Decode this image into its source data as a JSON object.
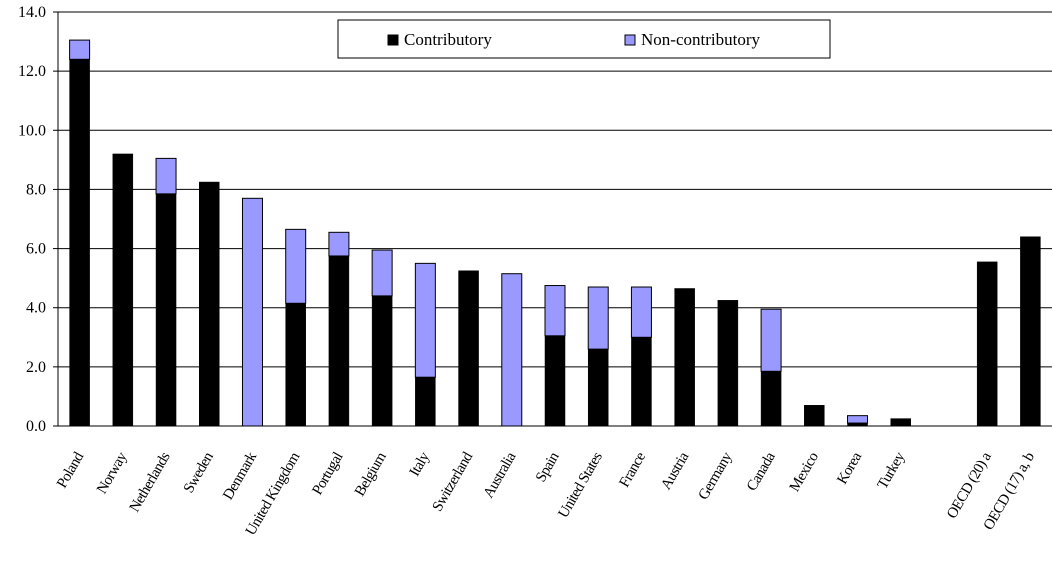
{
  "chart_data": {
    "type": "bar",
    "stacked": true,
    "categories": [
      "Poland",
      "Norway",
      "Netherlands",
      "Sweden",
      "Denmark",
      "United Kingdom",
      "Portugal",
      "Belgium",
      "Italy",
      "Switzerland",
      "Australia",
      "Spain",
      "United States",
      "France",
      "Austria",
      "Germany",
      "Canada",
      "Mexico",
      "Korea",
      "Turkey",
      "",
      "OECD (20) a",
      "OECD (17) a, b"
    ],
    "series": [
      {
        "name": "Contributory",
        "color": "#000000",
        "values": [
          12.4,
          9.2,
          7.85,
          8.25,
          0,
          4.15,
          5.75,
          4.4,
          1.65,
          5.25,
          0,
          3.05,
          2.6,
          3.0,
          4.65,
          4.25,
          1.85,
          0.7,
          0.1,
          0.25,
          null,
          5.55,
          6.4
        ]
      },
      {
        "name": "Non-contributory",
        "color": "#9999ff",
        "values": [
          0.65,
          0,
          1.2,
          0,
          7.7,
          2.5,
          0.8,
          1.55,
          3.85,
          0,
          5.15,
          1.7,
          2.1,
          1.7,
          0,
          0,
          2.1,
          0,
          0.25,
          0,
          null,
          0,
          0
        ]
      }
    ],
    "ylim": [
      0,
      14
    ],
    "yticks": [
      "0.0",
      "2.0",
      "4.0",
      "6.0",
      "8.0",
      "10.0",
      "12.0",
      "14.0"
    ],
    "grid": true,
    "legend": "top-center",
    "xlabel": "",
    "ylabel": ""
  }
}
